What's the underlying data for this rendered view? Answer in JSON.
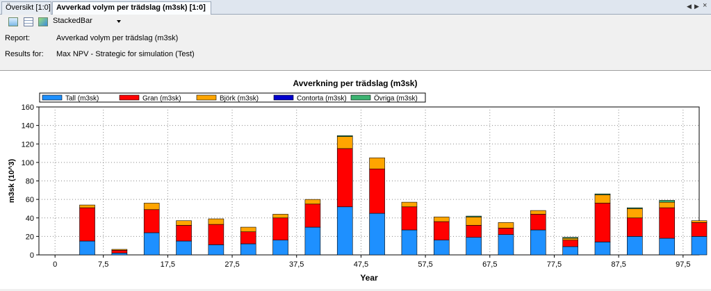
{
  "tabs": [
    {
      "label": "Översikt [1:0]",
      "active": false
    },
    {
      "label": "Avverkad volym per trädslag (m3sk) [1:0]",
      "active": true
    }
  ],
  "toolbar": {
    "icons": [
      "chart-icon",
      "table-icon",
      "chart-export-icon"
    ],
    "chart_type": "StackedBar"
  },
  "info": {
    "report_label": "Report:",
    "report_value": "Avverkad volym per trädslag (m3sk)",
    "results_label": "Results for:",
    "results_value": "Max NPV - Strategic for simulation (Test)"
  },
  "chart_data": {
    "type": "bar",
    "stacked": true,
    "title": "Avverkning per trädslag (m3sk)",
    "xlabel": "Year",
    "ylabel": "m3sk  (10^3)",
    "ylim": [
      0,
      160
    ],
    "yticks": [
      0,
      20,
      40,
      60,
      80,
      100,
      120,
      140,
      160
    ],
    "xlim": [
      -2.5,
      100
    ],
    "xticks": [
      0,
      7.5,
      17.5,
      27.5,
      37.5,
      47.5,
      57.5,
      67.5,
      77.5,
      87.5,
      97.5
    ],
    "xtick_labels": [
      "0",
      "7,5",
      "17,5",
      "27,5",
      "37,5",
      "47,5",
      "57,5",
      "67,5",
      "77,5",
      "87,5",
      "97,5"
    ],
    "grid": true,
    "legend_position": "top-left",
    "x": [
      0,
      5,
      10,
      15,
      20,
      25,
      30,
      35,
      40,
      45,
      50,
      55,
      60,
      65,
      70,
      75,
      80,
      85,
      90,
      95,
      100
    ],
    "series": [
      {
        "name": "Tall (m3sk)",
        "color": "#1e90ff",
        "values": [
          0,
          15,
          2,
          24,
          15,
          11,
          12,
          16,
          30,
          52,
          45,
          27,
          16,
          19,
          22,
          27,
          9,
          14,
          20,
          18,
          20
        ]
      },
      {
        "name": "Gran (m3sk)",
        "color": "#ff0000",
        "values": [
          0,
          36,
          3,
          25,
          17,
          22,
          13,
          24,
          25,
          63,
          48,
          25,
          20,
          13,
          7,
          17,
          7,
          42,
          20,
          33,
          15
        ]
      },
      {
        "name": "Björk (m3sk)",
        "color": "#ffa500",
        "values": [
          0,
          3,
          1,
          7,
          5,
          6,
          5,
          4,
          5,
          13,
          12,
          5,
          5,
          9,
          6,
          4,
          2,
          9,
          10,
          6,
          2
        ]
      },
      {
        "name": "Contorta (m3sk)",
        "color": "#0000cd",
        "values": [
          0,
          0,
          0,
          0,
          0,
          0,
          0,
          0,
          0,
          0,
          0,
          0,
          0,
          0,
          0,
          0,
          0,
          0,
          0,
          0,
          0
        ]
      },
      {
        "name": "Övriga (m3sk)",
        "color": "#3cb371",
        "values": [
          0,
          0,
          0,
          0,
          0,
          0,
          0,
          0,
          0,
          1,
          0,
          0,
          0,
          1,
          0,
          0,
          1,
          1,
          1,
          2,
          0
        ]
      }
    ]
  }
}
